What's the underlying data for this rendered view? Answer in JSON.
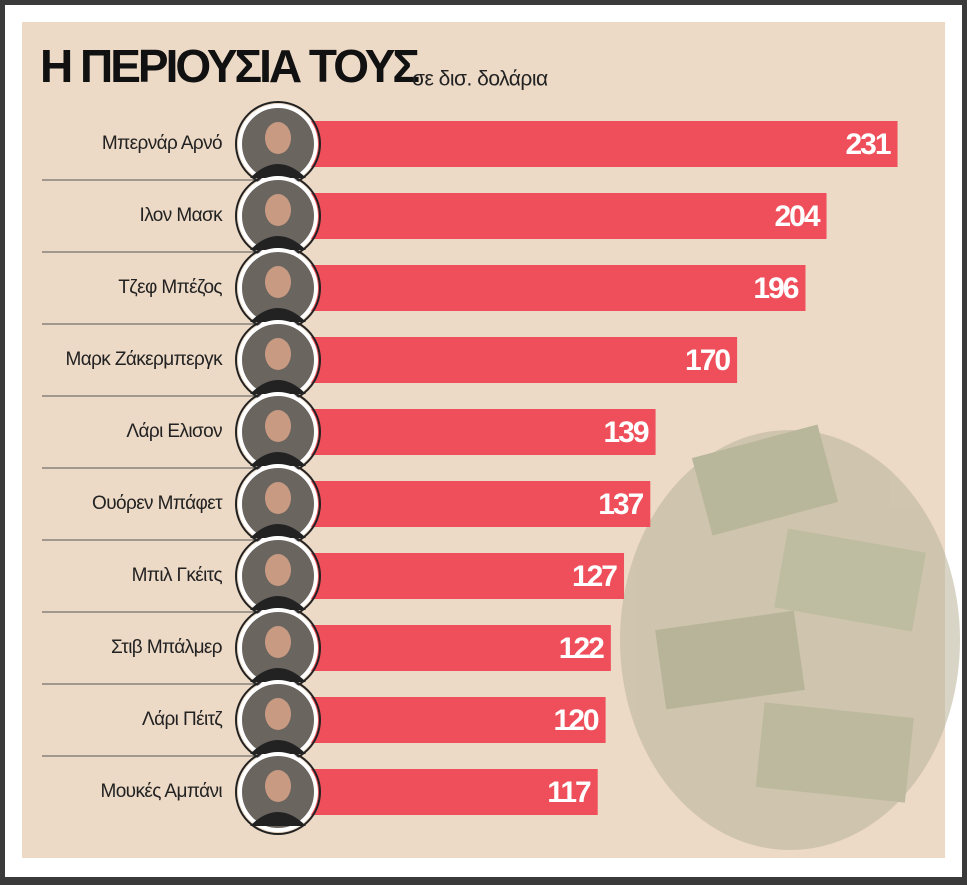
{
  "chart_data": {
    "type": "bar",
    "orientation": "horizontal",
    "title": "Η ΠΕΡΙΟΥΣΙΑ ΤΟΥΣ",
    "subtitle": "σε δισ. δολάρια",
    "categories": [
      "Μπερνάρ Αρνό",
      "Ιλον Μασκ",
      "Τζεφ Μπέζος",
      "Μαρκ Ζάκερμπεργκ",
      "Λάρι Ελισον",
      "Ουόρεν Μπάφετ",
      "Μπιλ Γκέιτς",
      "Στιβ Μπάλμερ",
      "Λάρι Πέιτζ",
      "Μουκές Αμπάνι"
    ],
    "values": [
      231,
      204,
      196,
      170,
      139,
      137,
      127,
      122,
      120,
      117
    ],
    "color": "#ef4f5a"
  }
}
